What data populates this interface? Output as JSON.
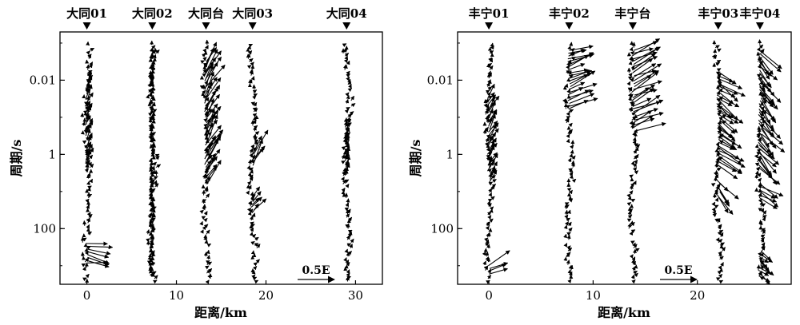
{
  "chart_data": [
    {
      "type": "scatter",
      "subtype": "induction-arrow profile",
      "xlabel": "距离/km",
      "ylabel": "周期/s",
      "xlim": [
        -3,
        33
      ],
      "ylim_log10": [
        -3.3,
        3.5
      ],
      "y_inverted": true,
      "y_scale": "log",
      "xticks": [
        0,
        10,
        20,
        30
      ],
      "xtick_labels": [
        "0",
        "10",
        "20",
        "30"
      ],
      "yticks": [
        0.01,
        1,
        100
      ],
      "ytick_labels": [
        "0.01",
        "1",
        "100"
      ],
      "scale_arrow_label": "0.5E",
      "scale_arrow_magnitude": 0.5,
      "stations": [
        {
          "name": "大同01",
          "x": 0
        },
        {
          "name": "大同02",
          "x": 7.3
        },
        {
          "name": "大同台",
          "x": 13.3
        },
        {
          "name": "大同03",
          "x": 18.5
        },
        {
          "name": "大同04",
          "x": 29
        }
      ],
      "arrows": [
        {
          "station_x": 0,
          "period_logs": [
            -2.0,
            -1.0,
            0.5
          ],
          "length": 0.15,
          "dir": -70,
          "seed": 1
        },
        {
          "station_x": 0,
          "period_logs": [
            2.4,
            2.5,
            2.7,
            3.0
          ],
          "length": 0.35,
          "dir": 10,
          "seed": 2
        },
        {
          "station_x": 7.3,
          "period_logs": [
            -2.8,
            3.3
          ],
          "length": 0.05,
          "dir": -90,
          "seed": 3
        },
        {
          "station_x": 13.3,
          "period_logs": [
            -2.5,
            0.2,
            0.8
          ],
          "length": 0.35,
          "dir": -60,
          "seed": 4
        },
        {
          "station_x": 18.5,
          "period_logs": [
            0.0,
            0.3
          ],
          "length": 0.35,
          "dir": -60,
          "seed": 5
        },
        {
          "station_x": 18.5,
          "period_logs": [
            1.2,
            1.6
          ],
          "length": 0.2,
          "dir": -50,
          "seed": 6
        },
        {
          "station_x": 29,
          "period_logs": [
            -0.8,
            0.6
          ],
          "length": 0.1,
          "dir": -75,
          "seed": 7
        }
      ]
    },
    {
      "type": "scatter",
      "subtype": "induction-arrow profile",
      "xlabel": "距离/km",
      "ylabel": "周期/s",
      "xlim": [
        -3,
        29
      ],
      "ylim_log10": [
        -3.3,
        3.5
      ],
      "y_inverted": true,
      "y_scale": "log",
      "xticks": [
        0,
        10,
        20
      ],
      "xtick_labels": [
        "0",
        "10",
        "20"
      ],
      "yticks": [
        0.01,
        1,
        100
      ],
      "ytick_labels": [
        "0.01",
        "1",
        "100"
      ],
      "scale_arrow_label": "0.5E",
      "scale_arrow_magnitude": 0.5,
      "stations": [
        {
          "name": "丰宁01",
          "x": 0
        },
        {
          "name": "丰宁02",
          "x": 7.7
        },
        {
          "name": "丰宁台",
          "x": 13.8
        },
        {
          "name": "丰宁03",
          "x": 22
        },
        {
          "name": "丰宁04",
          "x": 26
        }
      ],
      "arrows": [
        {
          "station_x": 0,
          "period_logs": [
            -1.5,
            0.0,
            0.8
          ],
          "length": 0.2,
          "dir": -60,
          "seed": 11
        },
        {
          "station_x": 0,
          "period_logs": [
            3.0,
            3.3
          ],
          "length": 0.35,
          "dir": -25,
          "seed": 12
        },
        {
          "station_x": 7.7,
          "period_logs": [
            -2.8,
            -1.2
          ],
          "length": 0.35,
          "dir": -20,
          "seed": 13
        },
        {
          "station_x": 13.8,
          "period_logs": [
            -2.8,
            -0.6
          ],
          "length": 0.4,
          "dir": -25,
          "seed": 14
        },
        {
          "station_x": 22,
          "period_logs": [
            -2.2,
            0.3
          ],
          "length": 0.35,
          "dir": 35,
          "seed": 15
        },
        {
          "station_x": 22,
          "period_logs": [
            0.7,
            1.2
          ],
          "length": 0.3,
          "dir": 50,
          "seed": 16
        },
        {
          "station_x": 26,
          "period_logs": [
            -2.8,
            0.4
          ],
          "length": 0.35,
          "dir": 50,
          "seed": 17
        },
        {
          "station_x": 26,
          "period_logs": [
            0.8,
            1.2
          ],
          "length": 0.3,
          "dir": 30,
          "seed": 18
        },
        {
          "station_x": 26,
          "period_logs": [
            2.6,
            3.3
          ],
          "length": 0.2,
          "dir": 40,
          "seed": 19
        }
      ]
    }
  ]
}
